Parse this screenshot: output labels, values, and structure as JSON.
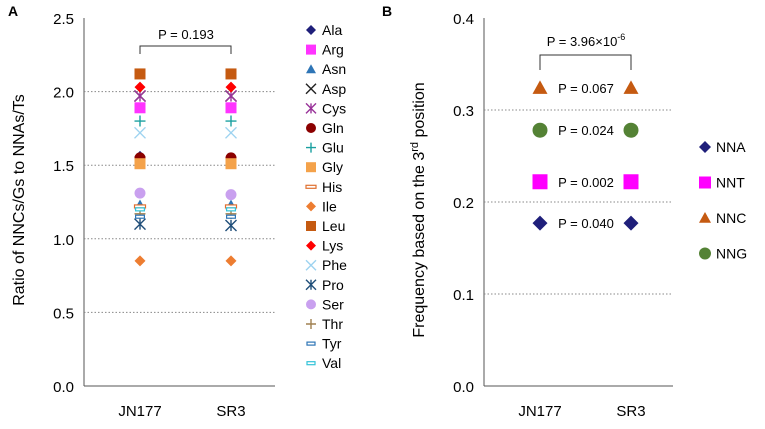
{
  "chart_data": [
    {
      "type": "scatter",
      "panel_label": "A",
      "ylabel": "Ratio of NNCs/Gs to NNAs/Ts",
      "categories": [
        "JN177",
        "SR3"
      ],
      "ylim": [
        0,
        2.5
      ],
      "yticks": [
        "0.0",
        "0.5",
        "1.0",
        "1.5",
        "2.0",
        "2.5"
      ],
      "grid": "dotted horizontal",
      "annotation": "P = 0.193",
      "series": [
        {
          "name": "Ala",
          "marker": "diamond",
          "color": "#1f1f7a",
          "values": [
            1.56,
            1.55
          ]
        },
        {
          "name": "Arg",
          "marker": "square",
          "color": "#ff33ff",
          "values": [
            1.89,
            1.89
          ]
        },
        {
          "name": "Asn",
          "marker": "triangle",
          "color": "#2e75b6",
          "values": [
            1.23,
            1.23
          ]
        },
        {
          "name": "Asp",
          "marker": "x",
          "color": "#222222",
          "values": [
            1.97,
            1.97
          ]
        },
        {
          "name": "Cys",
          "marker": "xstar",
          "color": "#993399",
          "values": [
            1.97,
            1.97
          ]
        },
        {
          "name": "Gln",
          "marker": "circle",
          "color": "#8b0000",
          "values": [
            1.55,
            1.55
          ]
        },
        {
          "name": "Glu",
          "marker": "plus",
          "color": "#1aa0a0",
          "values": [
            1.8,
            1.8
          ]
        },
        {
          "name": "Gly",
          "marker": "square",
          "color": "#f4a24a",
          "values": [
            1.51,
            1.51
          ]
        },
        {
          "name": "His",
          "marker": "dash",
          "color": "#e07030",
          "values": [
            1.22,
            1.22
          ]
        },
        {
          "name": "Ile",
          "marker": "diamond",
          "color": "#ed7d31",
          "values": [
            0.85,
            0.85
          ]
        },
        {
          "name": "Leu",
          "marker": "square",
          "color": "#c55a11",
          "values": [
            2.12,
            2.12
          ]
        },
        {
          "name": "Lys",
          "marker": "diamond",
          "color": "#ff0000",
          "values": [
            2.03,
            2.03
          ]
        },
        {
          "name": "Phe",
          "marker": "x",
          "color": "#9dd3f0",
          "values": [
            1.72,
            1.72
          ]
        },
        {
          "name": "Pro",
          "marker": "xstar",
          "color": "#1f4e79",
          "values": [
            1.1,
            1.09
          ]
        },
        {
          "name": "Ser",
          "marker": "circle",
          "color": "#c9a0ef",
          "values": [
            1.31,
            1.3
          ]
        },
        {
          "name": "Thr",
          "marker": "plus",
          "color": "#a08050",
          "values": [
            1.17,
            1.17
          ]
        },
        {
          "name": "Tyr",
          "marker": "hollow-rect",
          "color": "#2e75b6",
          "values": [
            1.15,
            1.15
          ]
        },
        {
          "name": "Val",
          "marker": "hollow-rect",
          "color": "#33c3d8",
          "values": [
            1.2,
            1.2
          ]
        }
      ]
    },
    {
      "type": "scatter",
      "panel_label": "B",
      "ylabel_main": "Frequency based on the 3",
      "ylabel_sup": "rd",
      "ylabel_tail": " position",
      "categories": [
        "JN177",
        "SR3"
      ],
      "ylim": [
        0,
        0.4
      ],
      "yticks": [
        "0.0",
        "0.1",
        "0.2",
        "0.3",
        "0.4"
      ],
      "grid": "dotted horizontal",
      "annotation_main": "P = 3.96×10",
      "annotation_sup": "-6",
      "series": [
        {
          "name": "NNA",
          "marker": "diamond",
          "color": "#1f1f7a",
          "values": [
            0.177,
            0.177
          ],
          "p_label": "P = 0.040"
        },
        {
          "name": "NNT",
          "marker": "square",
          "color": "#ff00ff",
          "values": [
            0.222,
            0.222
          ],
          "p_label": "P = 0.002"
        },
        {
          "name": "NNC",
          "marker": "triangle",
          "color": "#c55a11",
          "values": [
            0.324,
            0.324
          ],
          "p_label": "P = 0.067"
        },
        {
          "name": "NNG",
          "marker": "circle",
          "color": "#548235",
          "values": [
            0.278,
            0.278
          ],
          "p_label": "P = 0.024"
        }
      ]
    }
  ]
}
